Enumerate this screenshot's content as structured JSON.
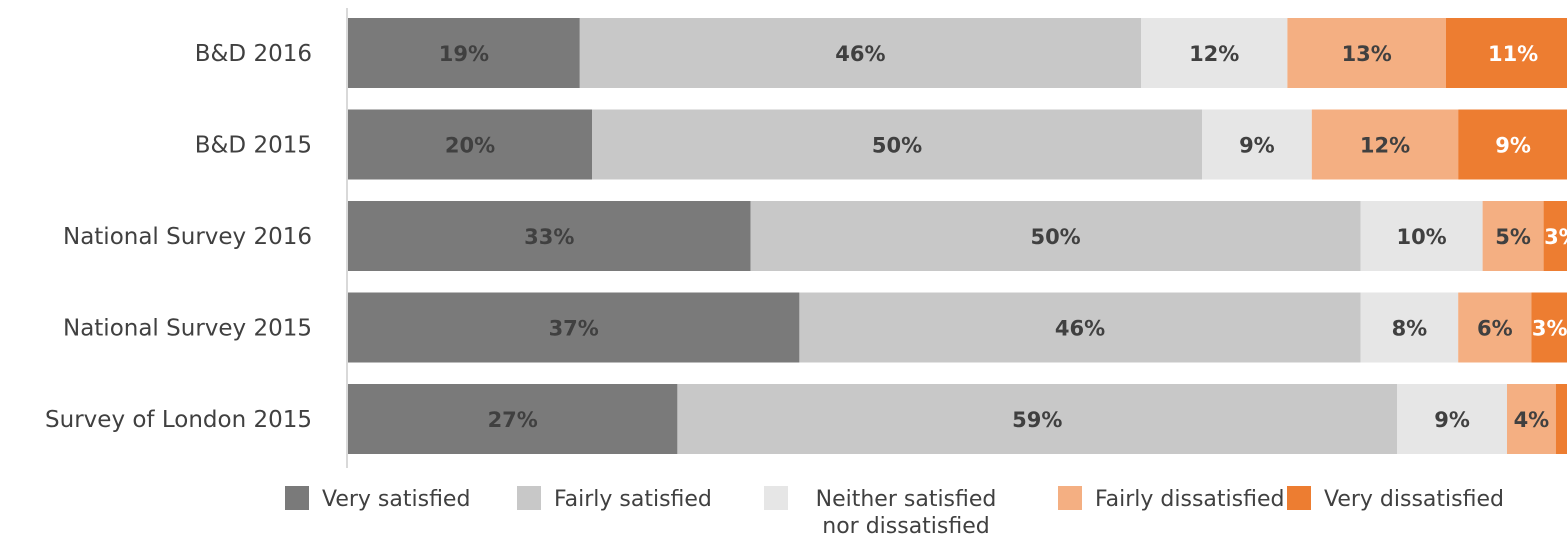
{
  "chart_data": {
    "type": "bar",
    "orientation": "horizontal",
    "stacked": true,
    "categories": [
      "B&D 2016",
      "B&D 2015",
      "National Survey 2016",
      "National Survey 2015",
      "Survey of London 2015"
    ],
    "series": [
      {
        "name": "Very satisfied",
        "color": "#7a7a7a",
        "values": [
          19,
          20,
          33,
          37,
          27
        ],
        "labels": [
          "19%",
          "20%",
          "33%",
          "37%",
          "27%"
        ],
        "label_color": "#404040"
      },
      {
        "name": "Fairly satisfied",
        "color": "#c8c8c8",
        "values": [
          46,
          50,
          50,
          46,
          59
        ],
        "labels": [
          "46%",
          "50%",
          "50%",
          "46%",
          "59%"
        ],
        "label_color": "#404040"
      },
      {
        "name": "Neither satisfied nor dissatisfied",
        "legend_lines": [
          "Neither satisfied",
          "nor dissatisfied"
        ],
        "color": "#e6e6e6",
        "values": [
          12,
          9,
          10,
          8,
          9
        ],
        "labels": [
          "12%",
          "9%",
          "10%",
          "8%",
          "9%"
        ],
        "label_color": "#404040"
      },
      {
        "name": "Fairly dissatisfied",
        "color": "#f4af82",
        "values": [
          13,
          12,
          5,
          6,
          4
        ],
        "labels": [
          "13%",
          "12%",
          "5%",
          "6%",
          "4%"
        ],
        "label_color": "#404040"
      },
      {
        "name": "Very dissatisfied",
        "color": "#ed7d31",
        "values": [
          11,
          9,
          3,
          3,
          1
        ],
        "labels": [
          "11%",
          "9%",
          "3%",
          "3%",
          ""
        ],
        "label_color": "#ffffff"
      }
    ],
    "title": "",
    "xlabel": "",
    "ylabel": "",
    "xlim": [
      0,
      100
    ],
    "grid": false,
    "legend_position": "bottom",
    "axis_line_color": "#d9d9d9"
  }
}
